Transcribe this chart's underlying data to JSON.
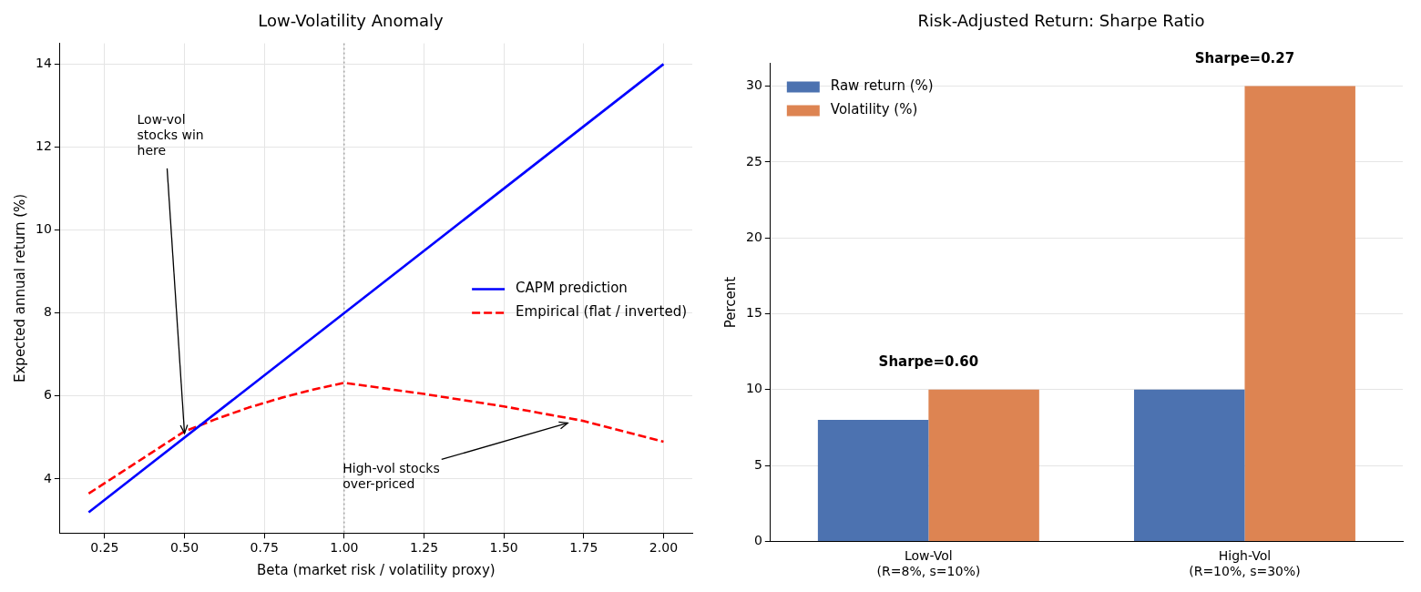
{
  "chart_data": [
    {
      "type": "line",
      "title": "Low-Volatility Anomaly",
      "xlabel": "Beta (market risk / volatility proxy)",
      "ylabel": "Expected annual return (%)",
      "xlim": [
        0.11,
        2.09
      ],
      "xticks": [
        {
          "value": 0.25,
          "label": "0.25"
        },
        {
          "value": 0.5,
          "label": "0.50"
        },
        {
          "value": 0.75,
          "label": "0.75"
        },
        {
          "value": 1,
          "label": "1.00"
        },
        {
          "value": 1.25,
          "label": "1.25"
        },
        {
          "value": 1.5,
          "label": "1.50"
        },
        {
          "value": 1.75,
          "label": "1.75"
        },
        {
          "value": 2,
          "label": "2.00"
        }
      ],
      "ylim": [
        2.7,
        14.5
      ],
      "yticks": [
        4,
        6,
        8,
        10,
        12,
        14
      ],
      "grid": true,
      "legend": "right",
      "series": [
        {
          "name": "CAPM prediction",
          "color": "#0000ff",
          "line_style": "solid",
          "x": [
            0.2,
            2.0
          ],
          "values": [
            3.2,
            14
          ]
        },
        {
          "name": "Empirical (flat / inverted)",
          "color": "#ff0000",
          "line_style": "dashed",
          "x": [
            0.2,
            0.3,
            0.4,
            0.5,
            0.6,
            0.7,
            0.8,
            0.9,
            1.0,
            1.25,
            1.5,
            1.75,
            2.0
          ],
          "values": [
            3.65,
            4.15,
            4.65,
            5.15,
            5.45,
            5.72,
            5.95,
            6.15,
            6.32,
            6.05,
            5.75,
            5.4,
            4.9
          ]
        }
      ],
      "ref_lines": [
        {
          "axis": "x",
          "value": 1,
          "color": "#808080",
          "line_style": "dotted"
        }
      ],
      "annotations": [
        {
          "text": "Low-vol\nstocks win\nhere",
          "x": 0.5,
          "y": 5.1
        },
        {
          "text": "High-vol stocks\nover-priced",
          "x": 1.7,
          "y": 5.35
        }
      ]
    },
    {
      "type": "bar",
      "title": "Risk-Adjusted Return: Sharpe Ratio",
      "ylabel": "Percent",
      "categories": [
        "Low-Vol\n(R=8%, s=10%)",
        "High-Vol\n(R=10%, s=30%)"
      ],
      "ylim": [
        0,
        31.5
      ],
      "yticks": [
        0,
        5,
        10,
        15,
        20,
        25,
        30
      ],
      "grid": "y",
      "legend": "top left",
      "series": [
        {
          "name": "Raw return (%)",
          "color": "#4c72b0",
          "values": [
            8,
            10
          ]
        },
        {
          "name": "Volatility (%)",
          "color": "#dd8452",
          "values": [
            10,
            30
          ]
        }
      ],
      "annotations": [
        "Sharpe=0.60",
        "Sharpe=0.27"
      ]
    }
  ]
}
